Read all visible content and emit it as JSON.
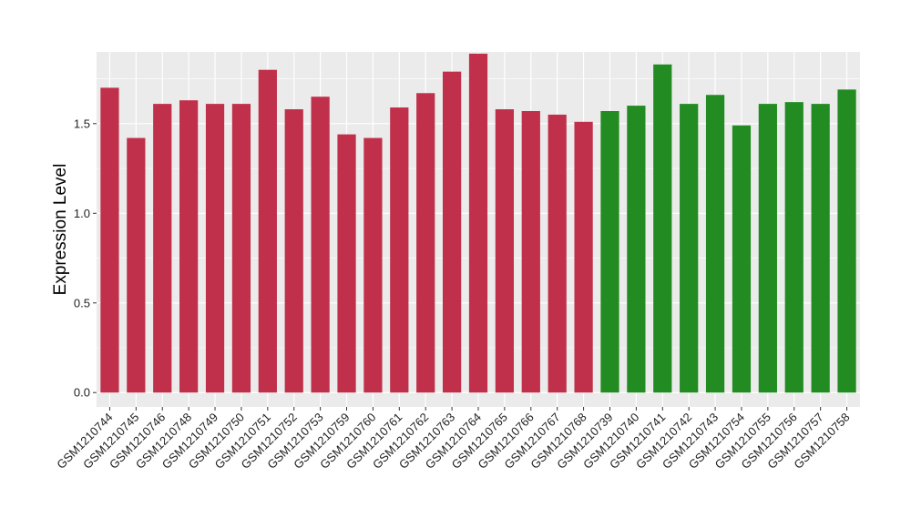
{
  "chart_data": {
    "type": "bar",
    "title": "",
    "xlabel": "",
    "ylabel": "Expression Level",
    "ylim": [
      -0.08,
      1.9
    ],
    "yticks": [
      0.0,
      0.5,
      1.0,
      1.5
    ],
    "ytick_labels": [
      "0.0",
      "0.5",
      "1.0",
      "1.5"
    ],
    "grid": true,
    "legend": "none",
    "panel_background": "#ebebeb",
    "grid_color": "#ffffff",
    "categories": [
      "GSM1210744",
      "GSM1210745",
      "GSM1210746",
      "GSM1210748",
      "GSM1210749",
      "GSM1210750",
      "GSM1210751",
      "GSM1210752",
      "GSM1210753",
      "GSM1210759",
      "GSM1210760",
      "GSM1210761",
      "GSM1210762",
      "GSM1210763",
      "GSM1210764",
      "GSM1210765",
      "GSM1210766",
      "GSM1210767",
      "GSM1210768",
      "GSM1210739",
      "GSM1210740",
      "GSM1210741",
      "GSM1210742",
      "GSM1210743",
      "GSM1210754",
      "GSM1210755",
      "GSM1210756",
      "GSM1210757",
      "GSM1210758"
    ],
    "values": [
      1.7,
      1.42,
      1.61,
      1.63,
      1.61,
      1.61,
      1.8,
      1.58,
      1.65,
      1.44,
      1.42,
      1.59,
      1.67,
      1.79,
      1.89,
      1.58,
      1.57,
      1.55,
      1.51,
      1.57,
      1.6,
      1.83,
      1.61,
      1.66,
      1.49,
      1.61,
      1.62,
      1.61,
      1.69
    ],
    "colors": [
      "#c0304a",
      "#c0304a",
      "#c0304a",
      "#c0304a",
      "#c0304a",
      "#c0304a",
      "#c0304a",
      "#c0304a",
      "#c0304a",
      "#c0304a",
      "#c0304a",
      "#c0304a",
      "#c0304a",
      "#c0304a",
      "#c0304a",
      "#c0304a",
      "#c0304a",
      "#c0304a",
      "#c0304a",
      "#228b22",
      "#228b22",
      "#228b22",
      "#228b22",
      "#228b22",
      "#228b22",
      "#228b22",
      "#228b22",
      "#228b22",
      "#228b22"
    ]
  }
}
